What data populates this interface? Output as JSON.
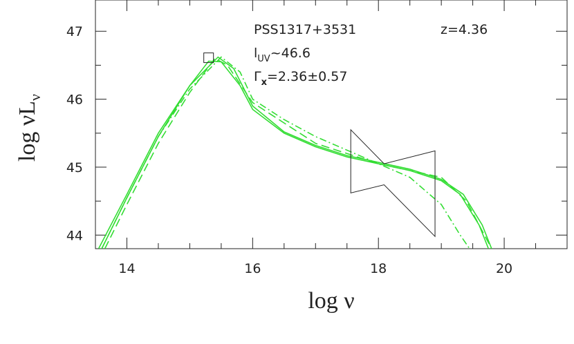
{
  "chart_data": {
    "type": "line",
    "xlabel": {
      "main": "log  ν"
    },
    "ylabel": {
      "main": "log νL",
      "sub": "ν"
    },
    "xlim": [
      13.5,
      21
    ],
    "ylim": [
      43.8,
      47.46
    ],
    "xticks": [
      14,
      16,
      18,
      20
    ],
    "yticks": [
      44,
      45,
      46,
      47
    ],
    "xminorticks": [
      13.5,
      14.5,
      15,
      15.5,
      16.5,
      17,
      17.5,
      18.5,
      19,
      19.5,
      20.5
    ],
    "yminorticks": [
      44.5,
      45.5,
      46.5
    ],
    "annotations": {
      "object": "PSS1317+3531",
      "redshift": "z=4.36",
      "luv": {
        "main": "l",
        "sub": "UV",
        "rest": "~46.6"
      },
      "gamma": {
        "main": "Γ",
        "sub": "x",
        "rest": "=2.36±0.57"
      }
    },
    "series": [
      {
        "color": "#33dd33",
        "linestyle": "solid",
        "x": [
          13.55,
          14,
          14.5,
          15,
          15.3,
          15.5,
          15.8,
          16,
          16.5,
          17,
          17.5,
          18,
          18.5,
          19,
          19.3,
          19.6,
          19.75
        ],
        "values": [
          43.8,
          44.6,
          45.5,
          46.2,
          46.56,
          46.55,
          46.2,
          45.85,
          45.5,
          45.3,
          45.15,
          45.05,
          44.95,
          44.8,
          44.6,
          44.15,
          43.8
        ]
      },
      {
        "color": "#33dd33",
        "linestyle": "solid",
        "x": [
          13.6,
          14,
          14.5,
          15,
          15.45,
          15.7,
          16,
          16.5,
          17,
          17.5,
          18,
          18.5,
          19,
          19.35,
          19.65,
          19.8
        ],
        "values": [
          43.8,
          44.55,
          45.45,
          46.2,
          46.62,
          46.45,
          45.9,
          45.52,
          45.32,
          45.17,
          45.07,
          44.97,
          44.82,
          44.6,
          44.15,
          43.8
        ]
      },
      {
        "color": "#33dd33",
        "linestyle": "dashed",
        "x": [
          13.65,
          14,
          14.5,
          15,
          15.4,
          15.6,
          16,
          17,
          18,
          19,
          19.4,
          19.8
        ],
        "values": [
          43.8,
          44.45,
          45.35,
          46.1,
          46.6,
          46.5,
          45.95,
          45.35,
          45.05,
          44.85,
          44.5,
          43.8
        ]
      },
      {
        "color": "#33dd33",
        "linestyle": "dashdot",
        "x": [
          13.6,
          14,
          14.5,
          15,
          15.5,
          15.8,
          16,
          16.5,
          17,
          18,
          18.5,
          19,
          19.3,
          19.45
        ],
        "values": [
          43.8,
          44.55,
          45.45,
          46.15,
          46.62,
          46.4,
          46.0,
          45.7,
          45.45,
          45.05,
          44.85,
          44.45,
          44.0,
          43.8
        ]
      }
    ],
    "point": {
      "x": 15.3,
      "y": 46.61,
      "color": "#222222"
    },
    "bowtie": {
      "x": [
        17.56,
        18.09,
        18.9,
        18.9,
        18.09,
        17.56
      ],
      "y": [
        45.55,
        45.05,
        45.24,
        43.98,
        44.74,
        44.62
      ],
      "color": "#222222"
    }
  }
}
